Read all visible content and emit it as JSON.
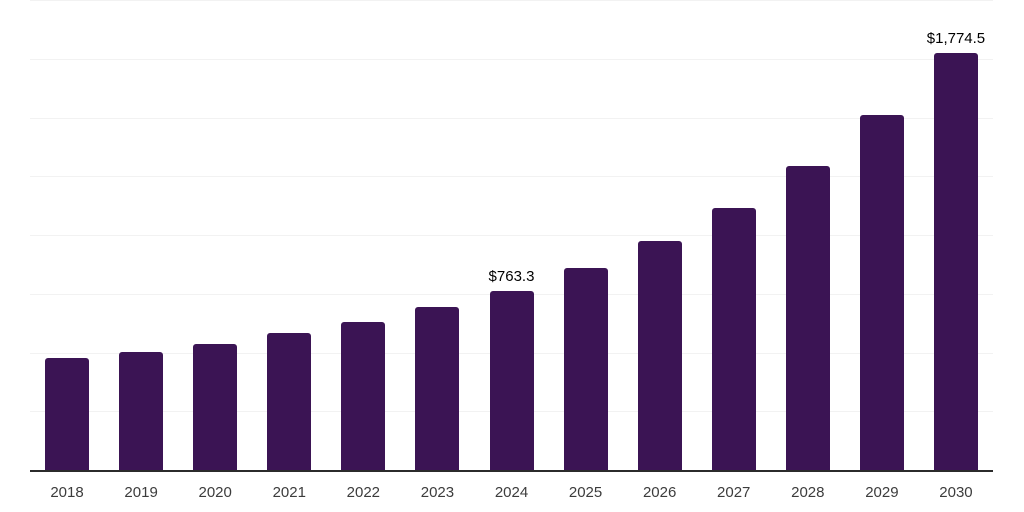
{
  "chart_data": {
    "type": "bar",
    "title": "",
    "xlabel": "",
    "ylabel": "",
    "categories": [
      "2018",
      "2019",
      "2020",
      "2021",
      "2022",
      "2023",
      "2024",
      "2025",
      "2026",
      "2027",
      "2028",
      "2029",
      "2030"
    ],
    "values": [
      477,
      502,
      537,
      581,
      628,
      693,
      763.3,
      861,
      975,
      1117,
      1293,
      1509,
      1774.5
    ],
    "point_labels": [
      "",
      "",
      "",
      "",
      "",
      "",
      "$763.3",
      "",
      "",
      "",
      "",
      "",
      "$1,774.5"
    ],
    "ylim": [
      0,
      2000
    ],
    "gridline_step": 250,
    "grid": "horizontal-only",
    "legend_position": "none",
    "y_tick_labels_visible": false,
    "colors": {
      "bar": "#3B1454",
      "gridline": "#F2F2F2",
      "axis_line": "#2B2B2B",
      "x_tick_label": "#3C3C3C",
      "data_label": "#000000",
      "background": "#FFFFFF"
    }
  }
}
